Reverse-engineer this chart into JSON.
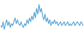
{
  "values": [
    5,
    4,
    7,
    3,
    6,
    8,
    5,
    7,
    4,
    6,
    5,
    7,
    9,
    6,
    8,
    6,
    5,
    7,
    5,
    4,
    6,
    5,
    8,
    6,
    9,
    7,
    10,
    8,
    12,
    9,
    14,
    11,
    16,
    12,
    14,
    10,
    8,
    11,
    7,
    9,
    6,
    8,
    5,
    7,
    6,
    8,
    6,
    7,
    5,
    6,
    7,
    5,
    6,
    7,
    5,
    6,
    7,
    5,
    6,
    5,
    6,
    7,
    5,
    6,
    7,
    6,
    5,
    7,
    6,
    5
  ],
  "line_color": "#4a9fd4",
  "background_color": "#ffffff",
  "linewidth": 0.8
}
